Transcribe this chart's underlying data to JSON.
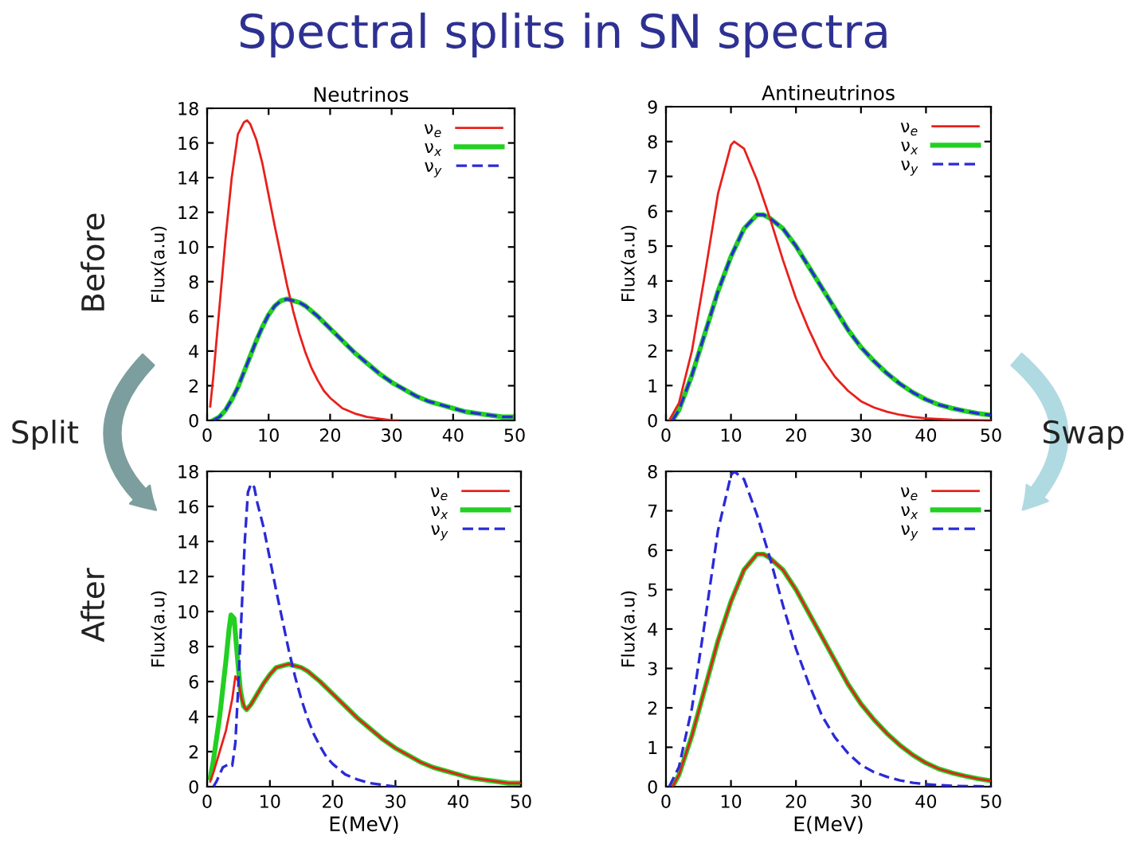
{
  "chart_data": [
    {
      "type": "line",
      "title": "Neutrinos",
      "ylabel": "Flux(a.u)",
      "xlim": [
        0,
        50
      ],
      "ylim": [
        0,
        18
      ],
      "xticks": [
        0,
        10,
        20,
        30,
        40,
        50
      ],
      "yticks": [
        0,
        2,
        4,
        6,
        8,
        10,
        12,
        14,
        16,
        18
      ],
      "legend": "top right",
      "annotations": [
        "Spectral splits in SN spectra",
        "Before",
        "Split"
      ],
      "series": [
        {
          "name": "ν$_{e}$",
          "color": "#e8201c",
          "line_style": "solid",
          "x": [
            0.5,
            1,
            2,
            3,
            4,
            5,
            6,
            6.5,
            7,
            8,
            9,
            10,
            11,
            12,
            13,
            14,
            15,
            16,
            17,
            18,
            19,
            20,
            22,
            24,
            26,
            28,
            30,
            31
          ],
          "values": [
            0.8,
            2.5,
            6.5,
            10.5,
            14,
            16.5,
            17.2,
            17.3,
            17.1,
            16.2,
            14.8,
            13,
            11.2,
            9.5,
            7.8,
            6.3,
            5,
            3.9,
            3,
            2.3,
            1.7,
            1.3,
            0.7,
            0.4,
            0.2,
            0.1,
            0,
            0
          ]
        },
        {
          "name": "ν$_{x}$",
          "color": "#22d022",
          "line_style": "solid",
          "x": [
            1,
            2,
            3,
            4,
            5,
            6,
            7,
            8,
            9,
            10,
            11,
            12,
            13,
            14,
            15,
            16,
            18,
            20,
            22,
            24,
            26,
            28,
            30,
            32,
            34,
            36,
            38,
            40,
            42,
            44,
            46,
            48,
            50
          ],
          "values": [
            0,
            0.2,
            0.6,
            1.2,
            1.9,
            2.8,
            3.7,
            4.6,
            5.4,
            6.1,
            6.6,
            6.9,
            7,
            6.9,
            6.8,
            6.6,
            6.0,
            5.3,
            4.6,
            3.9,
            3.3,
            2.7,
            2.2,
            1.8,
            1.4,
            1.1,
            0.9,
            0.7,
            0.5,
            0.4,
            0.3,
            0.2,
            0.2
          ]
        },
        {
          "name": "ν$_{y}$",
          "color": "#2a2ad8",
          "line_style": "dashed",
          "x": [
            1,
            2,
            3,
            4,
            5,
            6,
            7,
            8,
            9,
            10,
            11,
            12,
            13,
            14,
            15,
            16,
            18,
            20,
            22,
            24,
            26,
            28,
            30,
            32,
            34,
            36,
            38,
            40,
            42,
            44,
            46,
            48,
            50
          ],
          "values": [
            0,
            0.2,
            0.6,
            1.2,
            1.9,
            2.8,
            3.7,
            4.6,
            5.4,
            6.1,
            6.6,
            6.9,
            7,
            6.9,
            6.8,
            6.6,
            6.0,
            5.3,
            4.6,
            3.9,
            3.3,
            2.7,
            2.2,
            1.8,
            1.4,
            1.1,
            0.9,
            0.7,
            0.5,
            0.4,
            0.3,
            0.2,
            0.2
          ]
        }
      ]
    },
    {
      "type": "line",
      "title": "Antineutrinos",
      "ylabel": "Flux(a.u)",
      "xlim": [
        0,
        50
      ],
      "ylim": [
        0,
        9
      ],
      "xticks": [
        0,
        10,
        20,
        30,
        40,
        50
      ],
      "yticks": [
        0,
        1,
        2,
        3,
        4,
        5,
        6,
        7,
        8,
        9
      ],
      "legend": "top right",
      "annotations": [
        "Swap"
      ],
      "series": [
        {
          "name": "ν$_{e}$",
          "color": "#e8201c",
          "line_style": "solid",
          "x": [
            0.5,
            2,
            4,
            6,
            8,
            10,
            10.5,
            12,
            14,
            16,
            18,
            20,
            22,
            24,
            26,
            28,
            30,
            32,
            34,
            36,
            38,
            40,
            44,
            48,
            50
          ],
          "values": [
            0,
            0.5,
            2.0,
            4.2,
            6.5,
            7.9,
            8.0,
            7.8,
            6.9,
            5.8,
            4.6,
            3.5,
            2.6,
            1.8,
            1.25,
            0.85,
            0.55,
            0.37,
            0.25,
            0.16,
            0.1,
            0.06,
            0.02,
            0.01,
            0
          ]
        },
        {
          "name": "ν$_{x}$",
          "color": "#22d022",
          "line_style": "solid",
          "x": [
            1,
            2,
            4,
            6,
            8,
            10,
            12,
            14,
            15,
            16,
            18,
            20,
            22,
            24,
            26,
            28,
            30,
            32,
            34,
            36,
            38,
            40,
            42,
            44,
            46,
            48,
            50
          ],
          "values": [
            0,
            0.3,
            1.3,
            2.5,
            3.7,
            4.7,
            5.5,
            5.9,
            5.9,
            5.8,
            5.5,
            5.0,
            4.4,
            3.8,
            3.2,
            2.6,
            2.1,
            1.7,
            1.35,
            1.05,
            0.8,
            0.6,
            0.45,
            0.35,
            0.27,
            0.2,
            0.15
          ]
        },
        {
          "name": "ν$_{y}$",
          "color": "#2a2ad8",
          "line_style": "dashed",
          "x": [
            1,
            2,
            4,
            6,
            8,
            10,
            12,
            14,
            15,
            16,
            18,
            20,
            22,
            24,
            26,
            28,
            30,
            32,
            34,
            36,
            38,
            40,
            42,
            44,
            46,
            48,
            50
          ],
          "values": [
            0,
            0.3,
            1.3,
            2.5,
            3.7,
            4.7,
            5.5,
            5.9,
            5.9,
            5.8,
            5.5,
            5.0,
            4.4,
            3.8,
            3.2,
            2.6,
            2.1,
            1.7,
            1.35,
            1.05,
            0.8,
            0.6,
            0.45,
            0.35,
            0.27,
            0.2,
            0.15
          ]
        }
      ]
    },
    {
      "type": "line",
      "xlabel": "E(MeV)",
      "ylabel": "Flux(a.u)",
      "xlim": [
        0,
        50
      ],
      "ylim": [
        0,
        18
      ],
      "xticks": [
        0,
        10,
        20,
        30,
        40,
        50
      ],
      "yticks": [
        0,
        2,
        4,
        6,
        8,
        10,
        12,
        14,
        16,
        18
      ],
      "legend": "top right",
      "annotations": [
        "After"
      ],
      "series": [
        {
          "name": "ν$_{e}$",
          "color": "#e8201c",
          "line_style": "solid",
          "x": [
            0.5,
            1,
            2,
            3,
            4,
            4.5,
            5,
            5.5,
            6,
            6.3,
            7,
            8,
            9,
            10,
            11,
            12,
            13,
            14,
            15,
            16,
            18,
            20,
            22,
            24,
            26,
            28,
            30,
            32,
            34,
            36,
            38,
            40,
            42,
            44,
            46,
            48,
            50
          ],
          "values": [
            0.3,
            0.8,
            2.0,
            3.2,
            5.0,
            6.3,
            6.0,
            5.0,
            4.5,
            4.4,
            4.7,
            5.3,
            5.9,
            6.4,
            6.8,
            6.9,
            7,
            6.9,
            6.8,
            6.6,
            6.0,
            5.3,
            4.6,
            3.9,
            3.3,
            2.7,
            2.2,
            1.8,
            1.4,
            1.1,
            0.9,
            0.7,
            0.5,
            0.4,
            0.3,
            0.2,
            0.2
          ]
        },
        {
          "name": "ν$_{x}$",
          "color": "#22d022",
          "line_style": "solid",
          "x": [
            0.5,
            1,
            2,
            3,
            3.5,
            3.8,
            4.3,
            4.8,
            5.3,
            5.8,
            6.3,
            7,
            8,
            9,
            10,
            11,
            12,
            13,
            14,
            15,
            16,
            18,
            20,
            22,
            24,
            26,
            28,
            30,
            32,
            34,
            36,
            38,
            40,
            42,
            44,
            46,
            48,
            50
          ],
          "values": [
            0.5,
            1.5,
            4.0,
            7.2,
            9.0,
            9.8,
            9.6,
            7.5,
            5.5,
            4.6,
            4.4,
            4.7,
            5.3,
            5.9,
            6.4,
            6.8,
            6.9,
            7,
            6.9,
            6.8,
            6.6,
            6.0,
            5.3,
            4.6,
            3.9,
            3.3,
            2.7,
            2.2,
            1.8,
            1.4,
            1.1,
            0.9,
            0.7,
            0.5,
            0.4,
            0.3,
            0.2,
            0.2
          ]
        },
        {
          "name": "ν$_{y}$",
          "color": "#2a2ad8",
          "line_style": "dashed",
          "x": [
            1,
            1.5,
            2,
            2.5,
            3,
            3.5,
            4,
            4.5,
            5,
            5.5,
            6,
            6.5,
            7,
            7.5,
            8,
            9,
            10,
            11,
            12,
            13,
            14,
            15,
            16,
            17,
            18,
            19,
            20,
            22,
            24,
            26,
            28,
            30,
            31
          ],
          "values": [
            0,
            0.3,
            0.7,
            1.1,
            1.2,
            1.3,
            1.2,
            2.5,
            6,
            10,
            14,
            16.8,
            17.3,
            17.1,
            16.2,
            14.8,
            13,
            11.2,
            9.5,
            7.8,
            6.3,
            5,
            3.9,
            3,
            2.3,
            1.7,
            1.3,
            0.7,
            0.4,
            0.2,
            0.1,
            0,
            0
          ]
        }
      ]
    },
    {
      "type": "line",
      "xlabel": "E(MeV)",
      "ylabel": "Flux(a.u)",
      "xlim": [
        0,
        50
      ],
      "ylim": [
        0,
        8
      ],
      "xticks": [
        0,
        10,
        20,
        30,
        40,
        50
      ],
      "yticks": [
        0,
        1,
        2,
        3,
        4,
        5,
        6,
        7,
        8
      ],
      "legend": "top right",
      "series": [
        {
          "name": "ν$_{e}$",
          "color": "#e8201c",
          "line_style": "solid",
          "x": [
            1,
            2,
            4,
            6,
            8,
            10,
            12,
            14,
            15,
            16,
            18,
            20,
            22,
            24,
            26,
            28,
            30,
            32,
            34,
            36,
            38,
            40,
            42,
            44,
            46,
            48,
            50
          ],
          "values": [
            0,
            0.3,
            1.3,
            2.5,
            3.7,
            4.7,
            5.5,
            5.9,
            5.9,
            5.8,
            5.5,
            5.0,
            4.4,
            3.8,
            3.2,
            2.6,
            2.1,
            1.7,
            1.35,
            1.05,
            0.8,
            0.6,
            0.45,
            0.35,
            0.27,
            0.2,
            0.15
          ]
        },
        {
          "name": "ν$_{x}$",
          "color": "#22d022",
          "line_style": "solid",
          "x": [
            1,
            2,
            4,
            6,
            8,
            10,
            12,
            14,
            15,
            16,
            18,
            20,
            22,
            24,
            26,
            28,
            30,
            32,
            34,
            36,
            38,
            40,
            42,
            44,
            46,
            48,
            50
          ],
          "values": [
            0,
            0.3,
            1.3,
            2.5,
            3.7,
            4.7,
            5.5,
            5.9,
            5.9,
            5.8,
            5.5,
            5.0,
            4.4,
            3.8,
            3.2,
            2.6,
            2.1,
            1.7,
            1.35,
            1.05,
            0.8,
            0.6,
            0.45,
            0.35,
            0.27,
            0.2,
            0.15
          ]
        },
        {
          "name": "ν$_{y}$",
          "color": "#2a2ad8",
          "line_style": "dashed",
          "x": [
            0.5,
            2,
            4,
            6,
            8,
            10,
            10.5,
            12,
            14,
            16,
            18,
            20,
            22,
            24,
            26,
            28,
            30,
            32,
            34,
            36,
            38,
            40,
            44,
            48,
            50
          ],
          "values": [
            0,
            0.5,
            2.0,
            4.2,
            6.5,
            7.9,
            8.0,
            7.8,
            6.9,
            5.8,
            4.6,
            3.5,
            2.6,
            1.8,
            1.25,
            0.85,
            0.55,
            0.37,
            0.25,
            0.16,
            0.1,
            0.06,
            0.02,
            0.01,
            0
          ]
        }
      ]
    }
  ]
}
